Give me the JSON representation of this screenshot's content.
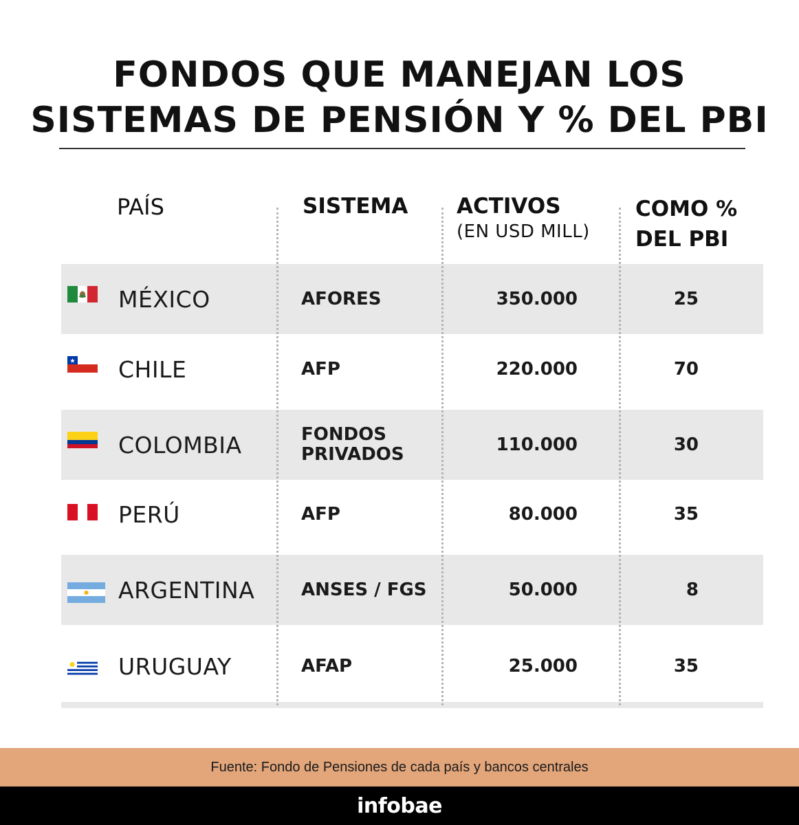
{
  "title": {
    "line1": "FONDOS QUE MANEJAN LOS",
    "line2": "SISTEMAS DE PENSIÓN Y % DEL PBI"
  },
  "headers": {
    "pais": "PAÍS",
    "sistema": "SISTEMA",
    "activos": "ACTIVOS",
    "activos_sub": "(EN USD MILL)",
    "pbi_line1": "COMO %",
    "pbi_line2": "DEL PBI"
  },
  "rows": [
    {
      "flag": "mexico-flag",
      "country": "MÉXICO",
      "sistema_line1": "AFORES",
      "sistema_line2": "",
      "activos": "350.000",
      "pbi": "25"
    },
    {
      "flag": "chile-flag",
      "country": "CHILE",
      "sistema_line1": "AFP",
      "sistema_line2": "",
      "activos": "220.000",
      "pbi": "70"
    },
    {
      "flag": "colombia-flag",
      "country": "COLOMBIA",
      "sistema_line1": "FONDOS",
      "sistema_line2": "PRIVADOS",
      "activos": "110.000",
      "pbi": "30"
    },
    {
      "flag": "peru-flag",
      "country": "PERÚ",
      "sistema_line1": "AFP",
      "sistema_line2": "",
      "activos": "80.000",
      "pbi": "35"
    },
    {
      "flag": "argentina-flag",
      "country": "ARGENTINA",
      "sistema_line1": "ANSES / FGS",
      "sistema_line2": "",
      "activos": "50.000",
      "pbi": "8"
    },
    {
      "flag": "uruguay-flag",
      "country": "URUGUAY",
      "sistema_line1": "AFAP",
      "sistema_line2": "",
      "activos": "25.000",
      "pbi": "35"
    }
  ],
  "source": "Fuente: Fondo de Pensiones de cada país y bancos centrales",
  "brand": "infobae",
  "colors": {
    "row_shade": "#e8e8e8",
    "source_band": "#e3a67b",
    "footer": "#000000"
  }
}
